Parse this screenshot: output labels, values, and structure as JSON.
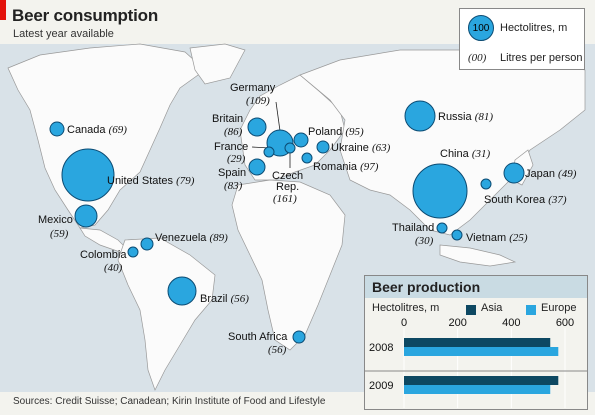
{
  "title": "Beer consumption",
  "subtitle": "Latest year available",
  "legend": {
    "circle_value": "100",
    "circle_label": "Hectolitres, m",
    "per_person_value": "(00)",
    "per_person_label": "Litres per person"
  },
  "colors": {
    "bubble": "#2aa6df",
    "bubble_edge": "#0b4b73",
    "land": "#fbfbfb",
    "sea": "#d9e2e8",
    "asia": "#0d4862",
    "europe": "#2aa6df",
    "accent": "#e3120b"
  },
  "countries": [
    {
      "name": "Canada",
      "per_person": "(69)"
    },
    {
      "name": "United States",
      "per_person": "(79)"
    },
    {
      "name": "Mexico",
      "per_person": "(59)"
    },
    {
      "name": "Colombia",
      "per_person": "(40)"
    },
    {
      "name": "Venezuela",
      "per_person": "(89)"
    },
    {
      "name": "Brazil",
      "per_person": "(56)"
    },
    {
      "name": "Britain",
      "per_person": "(86)"
    },
    {
      "name": "Germany",
      "per_person": "(109)"
    },
    {
      "name": "France",
      "per_person": "(29)"
    },
    {
      "name": "Spain",
      "per_person": "(83)"
    },
    {
      "name": "Czech Rep.",
      "per_person": "(161)"
    },
    {
      "name": "Poland",
      "per_person": "(95)"
    },
    {
      "name": "Ukraine",
      "per_person": "(63)"
    },
    {
      "name": "Romania",
      "per_person": "(97)"
    },
    {
      "name": "Russia",
      "per_person": "(81)"
    },
    {
      "name": "China",
      "per_person": "(31)"
    },
    {
      "name": "Japan",
      "per_person": "(49)"
    },
    {
      "name": "South Korea",
      "per_person": "(37)"
    },
    {
      "name": "Thailand",
      "per_person": "(30)"
    },
    {
      "name": "Vietnam",
      "per_person": "(25)"
    },
    {
      "name": "South Africa",
      "per_person": "(56)"
    }
  ],
  "production": {
    "title": "Beer production",
    "units": "Hectolitres, m",
    "legend_asia": "Asia",
    "legend_europe": "Europe"
  },
  "chart_data": {
    "type": "bar",
    "title": "Beer production",
    "ylabel": "Hectolitres, m",
    "categories": [
      "2008",
      "2009"
    ],
    "ticks": [
      "0",
      "200",
      "400",
      "600"
    ],
    "xlim": [
      0,
      600
    ],
    "series": [
      {
        "name": "Asia",
        "values": [
          545,
          575
        ]
      },
      {
        "name": "Europe",
        "values": [
          575,
          545
        ]
      }
    ]
  },
  "sources": "Sources: Credit Suisse; Canadean; Kirin Institute of Food and Lifestyle"
}
